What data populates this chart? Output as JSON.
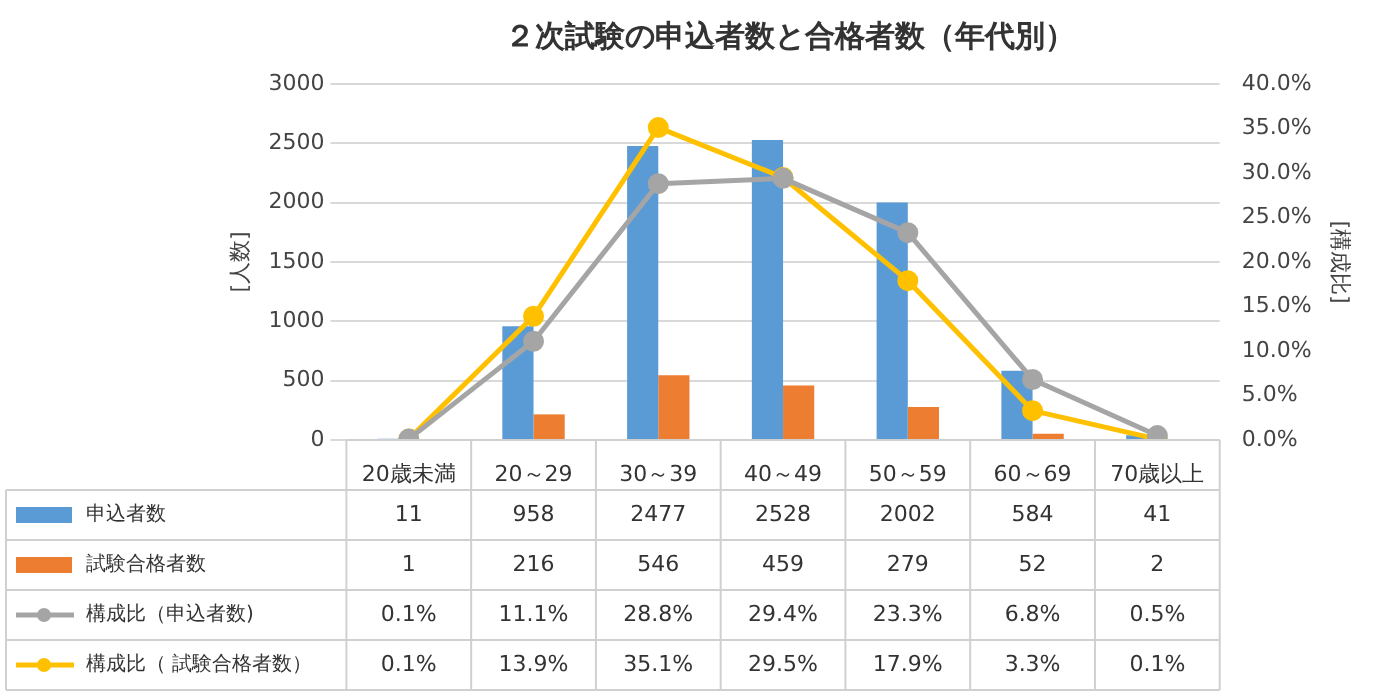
{
  "chart_data": {
    "type": "bar",
    "title": "２次試験の申込者数と合格者数（年代別）",
    "ylabel": "[人数]",
    "y2label": "[構成比]",
    "categories": [
      "20歳未満",
      "20～29",
      "30～39",
      "40～49",
      "50～59",
      "60～69",
      "70歳以上"
    ],
    "series": [
      {
        "name": "申込者数",
        "color": "#5b9bd5",
        "values": [
          11,
          958,
          2477,
          2528,
          2002,
          584,
          41
        ],
        "value_labels": [
          "11",
          "958",
          "2477",
          "2528",
          "2002",
          "584",
          "41"
        ]
      },
      {
        "name": "試験合格者数",
        "color": "#ed7d31",
        "values": [
          1,
          216,
          546,
          459,
          279,
          52,
          2
        ],
        "value_labels": [
          "1",
          "216",
          "546",
          "459",
          "279",
          "52",
          "2"
        ]
      },
      {
        "name": "構成比（申込者数)",
        "type": "line",
        "axis": "y2",
        "color": "#a5a5a5",
        "values": [
          0.1,
          11.1,
          28.8,
          29.4,
          23.3,
          6.8,
          0.5
        ],
        "value_labels": [
          "0.1%",
          "11.1%",
          "28.8%",
          "29.4%",
          "23.3%",
          "6.8%",
          "0.5%"
        ]
      },
      {
        "name": "構成比（ 試験合格者数）",
        "type": "line",
        "axis": "y2",
        "color": "#ffc000",
        "values": [
          0.1,
          13.9,
          35.1,
          29.5,
          17.9,
          3.3,
          0.1
        ],
        "value_labels": [
          "0.1%",
          "13.9%",
          "35.1%",
          "29.5%",
          "17.9%",
          "3.3%",
          "0.1%"
        ]
      }
    ],
    "ylim": [
      0,
      3000
    ],
    "yticks": [
      0,
      500,
      1000,
      1500,
      2000,
      2500,
      3000
    ],
    "y2lim": [
      0,
      40
    ],
    "y2ticks": [
      {
        "value": 0,
        "label": "0.0%"
      },
      {
        "value": 5,
        "label": "5.0%"
      },
      {
        "value": 10,
        "label": "10.0%"
      },
      {
        "value": 15,
        "label": "15.0%"
      },
      {
        "value": 20,
        "label": "20.0%"
      },
      {
        "value": 25,
        "label": "25.0%"
      },
      {
        "value": 30,
        "label": "30.0%"
      },
      {
        "value": 35,
        "label": "35.0%"
      },
      {
        "value": 40,
        "label": "40.0%"
      }
    ],
    "grid": "y",
    "legend": "bottom",
    "marker": "circle",
    "line_style": "solid"
  }
}
